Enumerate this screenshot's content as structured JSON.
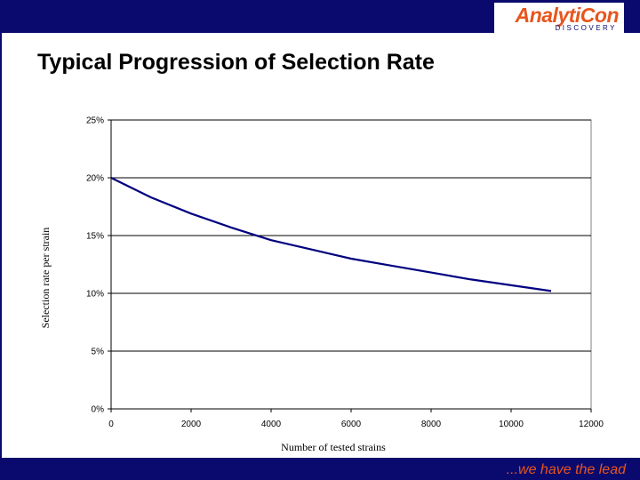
{
  "header": {
    "logo_text": "AnalytiCon",
    "logo_subtext": "DISCOVERY"
  },
  "slide": {
    "title": "Typical Progression of Selection Rate"
  },
  "footer": {
    "tagline": "...we have the lead"
  },
  "colors": {
    "bar": "#0a0a6e",
    "accent": "#e8551c",
    "series_line": "#000080"
  },
  "chart_data": {
    "type": "line",
    "title": "",
    "xlabel": "Number of tested strains",
    "ylabel": "Selection rate per strain",
    "xlim": [
      0,
      12000
    ],
    "ylim": [
      0,
      0.25
    ],
    "x_ticks": [
      0,
      2000,
      4000,
      6000,
      8000,
      10000,
      12000
    ],
    "x_tick_labels": [
      "0",
      "2000",
      "4000",
      "6000",
      "8000",
      "10000",
      "12000"
    ],
    "y_ticks": [
      0,
      0.05,
      0.1,
      0.15,
      0.2,
      0.25
    ],
    "y_tick_labels": [
      "0%",
      "5%",
      "10%",
      "15%",
      "20%",
      "25%"
    ],
    "grid": "horizontal",
    "legend": "none",
    "series": [
      {
        "x": [
          0,
          1000,
          2000,
          3000,
          4000,
          5000,
          6000,
          7000,
          8000,
          9000,
          10000,
          11000
        ],
        "y": [
          0.2,
          0.183,
          0.169,
          0.157,
          0.146,
          0.138,
          0.13,
          0.124,
          0.118,
          0.112,
          0.107,
          0.102
        ]
      }
    ]
  }
}
